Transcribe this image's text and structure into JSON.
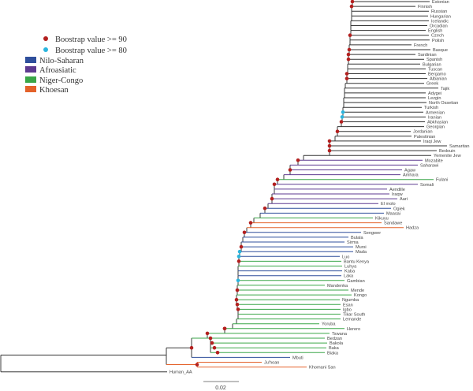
{
  "legend": {
    "bootstrap": [
      {
        "label": "Boostrap value >= 90",
        "color": "#b3201f"
      },
      {
        "label": "Boostrap value >= 80",
        "color": "#2bb5de"
      }
    ],
    "groups": [
      {
        "key": "N",
        "label": "Nilo-Saharan",
        "color": "#2f4f9c"
      },
      {
        "key": "A",
        "label": "Afroasiatic",
        "color": "#5e3a90"
      },
      {
        "key": "C",
        "label": "Niger-Congo",
        "color": "#3aa648"
      },
      {
        "key": "K",
        "label": "Khoesan",
        "color": "#e4622a"
      }
    ]
  },
  "colors": {
    "E": "#333333",
    "backbone": "#3a3a3a"
  },
  "scale_bar": {
    "label": "0.02"
  },
  "leaves": [
    {
      "label": "Estonian",
      "group": "E"
    },
    {
      "label": "Finnish",
      "group": "E"
    },
    {
      "label": "Russian",
      "group": "E"
    },
    {
      "label": "Hungarian",
      "group": "E"
    },
    {
      "label": "Icelandic",
      "group": "E"
    },
    {
      "label": "Orcadian",
      "group": "E"
    },
    {
      "label": "English",
      "group": "E"
    },
    {
      "label": "Czech",
      "group": "E"
    },
    {
      "label": "Polish",
      "group": "E"
    },
    {
      "label": "French",
      "group": "E"
    },
    {
      "label": "Basque",
      "group": "E"
    },
    {
      "label": "Sardinian",
      "group": "E"
    },
    {
      "label": "Spanish",
      "group": "E"
    },
    {
      "label": "Bulgarian",
      "group": "E"
    },
    {
      "label": "Tuscan",
      "group": "E"
    },
    {
      "label": "Bergamo",
      "group": "E"
    },
    {
      "label": "Albanian",
      "group": "E"
    },
    {
      "label": "Greek",
      "group": "E"
    },
    {
      "label": "Tajik",
      "group": "E"
    },
    {
      "label": "Adygei",
      "group": "E"
    },
    {
      "label": "Lezgin",
      "group": "E"
    },
    {
      "label": "North Ossetian",
      "group": "E"
    },
    {
      "label": "Turkish",
      "group": "E"
    },
    {
      "label": "Armenian",
      "group": "E"
    },
    {
      "label": "Iranian",
      "group": "E"
    },
    {
      "label": "Abkhasian",
      "group": "E"
    },
    {
      "label": "Georgian",
      "group": "E"
    },
    {
      "label": "Jordanian",
      "group": "E"
    },
    {
      "label": "Palestinian",
      "group": "E"
    },
    {
      "label": "Iraqi Jew",
      "group": "E"
    },
    {
      "label": "Samaritan",
      "group": "E"
    },
    {
      "label": "Bedouin",
      "group": "E"
    },
    {
      "label": "Yemenite Jew",
      "group": "E"
    },
    {
      "label": "Mozabite",
      "group": "A"
    },
    {
      "label": "Saharawi",
      "group": "A"
    },
    {
      "label": "Agaw",
      "group": "A"
    },
    {
      "label": "Amhara",
      "group": "A"
    },
    {
      "label": "Fulani",
      "group": "C"
    },
    {
      "label": "Somali",
      "group": "A"
    },
    {
      "label": "Aendille",
      "group": "A"
    },
    {
      "label": "Iraqw",
      "group": "A"
    },
    {
      "label": "Aari",
      "group": "A"
    },
    {
      "label": "El molo",
      "group": "A"
    },
    {
      "label": "Ogiek",
      "group": "N"
    },
    {
      "label": "Maasai",
      "group": "N"
    },
    {
      "label": "Kikuyu",
      "group": "C"
    },
    {
      "label": "Sandawe",
      "group": "K"
    },
    {
      "label": "Hadza",
      "group": "K"
    },
    {
      "label": "Sengwer",
      "group": "N"
    },
    {
      "label": "Bulala",
      "group": "N"
    },
    {
      "label": "Sirma",
      "group": "N"
    },
    {
      "label": "Mursi",
      "group": "N"
    },
    {
      "label": "Mada",
      "group": "N"
    },
    {
      "label": "Luo",
      "group": "N"
    },
    {
      "label": "Bantu Kenya",
      "group": "C"
    },
    {
      "label": "Luhya",
      "group": "C"
    },
    {
      "label": "Kaba",
      "group": "N"
    },
    {
      "label": "Laka",
      "group": "N"
    },
    {
      "label": "Gambian",
      "group": "C"
    },
    {
      "label": "Mandenka",
      "group": "C"
    },
    {
      "label": "Mende",
      "group": "C"
    },
    {
      "label": "Kongo",
      "group": "C"
    },
    {
      "label": "Ngumba",
      "group": "C"
    },
    {
      "label": "Esan",
      "group": "C"
    },
    {
      "label": "Igbo",
      "group": "C"
    },
    {
      "label": "Tikar South",
      "group": "C"
    },
    {
      "label": "Lemande",
      "group": "C"
    },
    {
      "label": "Yoruba",
      "group": "C"
    },
    {
      "label": "Herero",
      "group": "C"
    },
    {
      "label": "Tswana",
      "group": "C"
    },
    {
      "label": "Bedzan",
      "group": "C"
    },
    {
      "label": "Bakola",
      "group": "C"
    },
    {
      "label": "Baka",
      "group": "C"
    },
    {
      "label": "Biaka",
      "group": "C"
    },
    {
      "label": "Mbuti",
      "group": "N"
    },
    {
      "label": "Ju'hoan",
      "group": "K"
    },
    {
      "label": "Khomani San",
      "group": "K"
    },
    {
      "label": "Human_AA",
      "group": "E"
    }
  ]
}
